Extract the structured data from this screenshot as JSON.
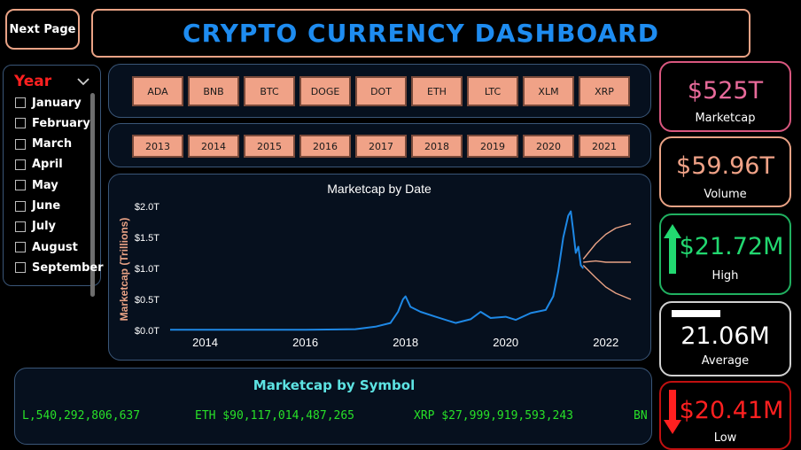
{
  "nav": {
    "next_page_label": "Next Page"
  },
  "header": {
    "title": "CRYPTO CURRENCY DASHBOARD"
  },
  "month_slicer": {
    "title": "Year",
    "months": [
      "January",
      "February",
      "March",
      "April",
      "May",
      "June",
      "July",
      "August",
      "September"
    ]
  },
  "symbols": [
    "ADA",
    "BNB",
    "BTC",
    "DOGE",
    "DOT",
    "ETH",
    "LTC",
    "XLM",
    "XRP"
  ],
  "years": [
    "2013",
    "2014",
    "2015",
    "2016",
    "2017",
    "2018",
    "2019",
    "2020",
    "2021"
  ],
  "chart_data": {
    "type": "line",
    "title": "Marketcap by Date",
    "ylabel": "Marketcap (Trillions)",
    "xlabel": "",
    "x_ticks": [
      "2014",
      "2016",
      "2018",
      "2020",
      "2022"
    ],
    "y_ticks": [
      "$0.0T",
      "$0.5T",
      "$1.0T",
      "$1.5T",
      "$2.0T"
    ],
    "ylim": [
      0,
      2.0
    ],
    "xlim": [
      2013.3,
      2022.5
    ],
    "series": [
      {
        "role": "actual",
        "color": "#1e88e5",
        "x": [
          2013.3,
          2014.0,
          2015.0,
          2016.0,
          2017.0,
          2017.4,
          2017.7,
          2017.85,
          2017.95,
          2018.0,
          2018.1,
          2018.3,
          2018.6,
          2019.0,
          2019.3,
          2019.5,
          2019.7,
          2020.0,
          2020.2,
          2020.5,
          2020.8,
          2020.95,
          2021.05,
          2021.15,
          2021.25,
          2021.3,
          2021.35,
          2021.4,
          2021.45,
          2021.5,
          2021.55
        ],
        "y": [
          0.01,
          0.01,
          0.01,
          0.01,
          0.02,
          0.06,
          0.12,
          0.3,
          0.5,
          0.55,
          0.38,
          0.3,
          0.22,
          0.12,
          0.18,
          0.3,
          0.2,
          0.22,
          0.17,
          0.28,
          0.33,
          0.55,
          0.95,
          1.5,
          1.85,
          1.92,
          1.6,
          1.25,
          1.35,
          1.05,
          1.0
        ]
      },
      {
        "role": "forecast",
        "color": "#e9a285",
        "x": [
          2021.55,
          2021.8,
          2022.0,
          2022.2,
          2022.5
        ],
        "y": [
          1.1,
          1.12,
          1.1,
          1.1,
          1.1
        ]
      },
      {
        "role": "forecast-upper",
        "color": "#e9a285",
        "x": [
          2021.55,
          2021.8,
          2022.0,
          2022.2,
          2022.5
        ],
        "y": [
          1.15,
          1.4,
          1.55,
          1.65,
          1.72
        ]
      },
      {
        "role": "forecast-lower",
        "color": "#e9a285",
        "x": [
          2021.55,
          2021.8,
          2022.0,
          2022.2,
          2022.5
        ],
        "y": [
          1.05,
          0.85,
          0.7,
          0.6,
          0.5
        ]
      }
    ]
  },
  "ticker": {
    "title": "Marketcap by Symbol",
    "items": [
      "L,540,292,806,637",
      "ETH $90,117,014,487,265",
      "XRP $27,999,919,593,243",
      "BN"
    ]
  },
  "kpis": {
    "marketcap": {
      "value": "$525T",
      "label": "Marketcap",
      "color": "#e86a9a"
    },
    "volume": {
      "value": "$59.96T",
      "label": "Volume",
      "color": "#f0a287"
    },
    "high": {
      "value": "$21.72M",
      "label": "High",
      "color": "#22d870"
    },
    "average": {
      "value": "21.06M",
      "label": "Average",
      "color": "#ffffff"
    },
    "low": {
      "value": "$20.41M",
      "label": "Low",
      "color": "#ff2020"
    }
  }
}
